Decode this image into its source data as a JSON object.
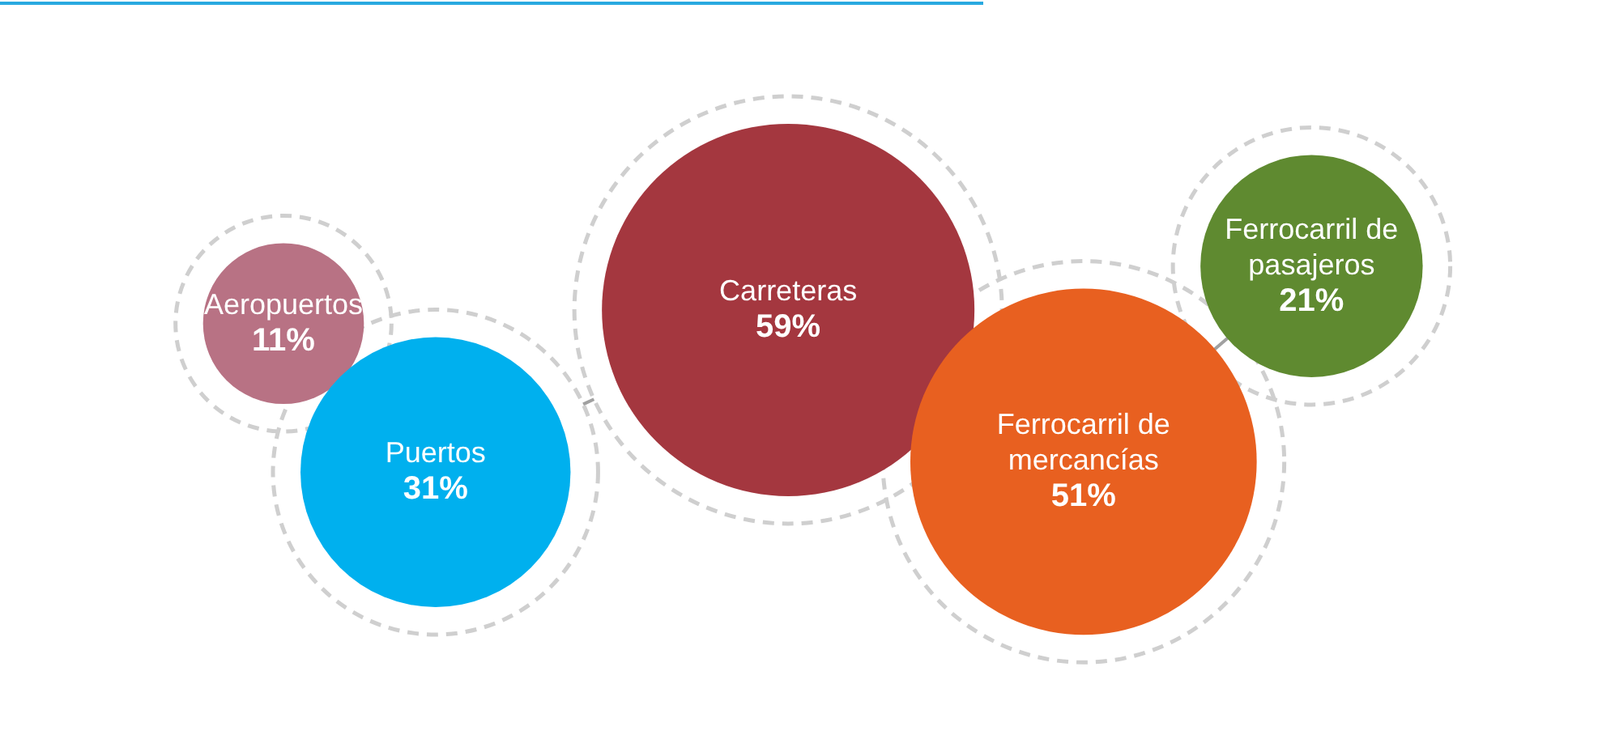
{
  "chart_data": {
    "type": "other",
    "categories": [
      "Aeropuertos",
      "Puertos",
      "Carreteras",
      "Ferrocarril de mercancías",
      "Ferrocarril de pasajeros"
    ],
    "values": [
      11,
      31,
      59,
      51,
      21
    ],
    "value_labels": [
      "11%",
      "31%",
      "59%",
      "51%",
      "21%"
    ],
    "colors": [
      "#b87284",
      "#00b0ee",
      "#a4373f",
      "#e86020",
      "#5f8a30"
    ]
  }
}
